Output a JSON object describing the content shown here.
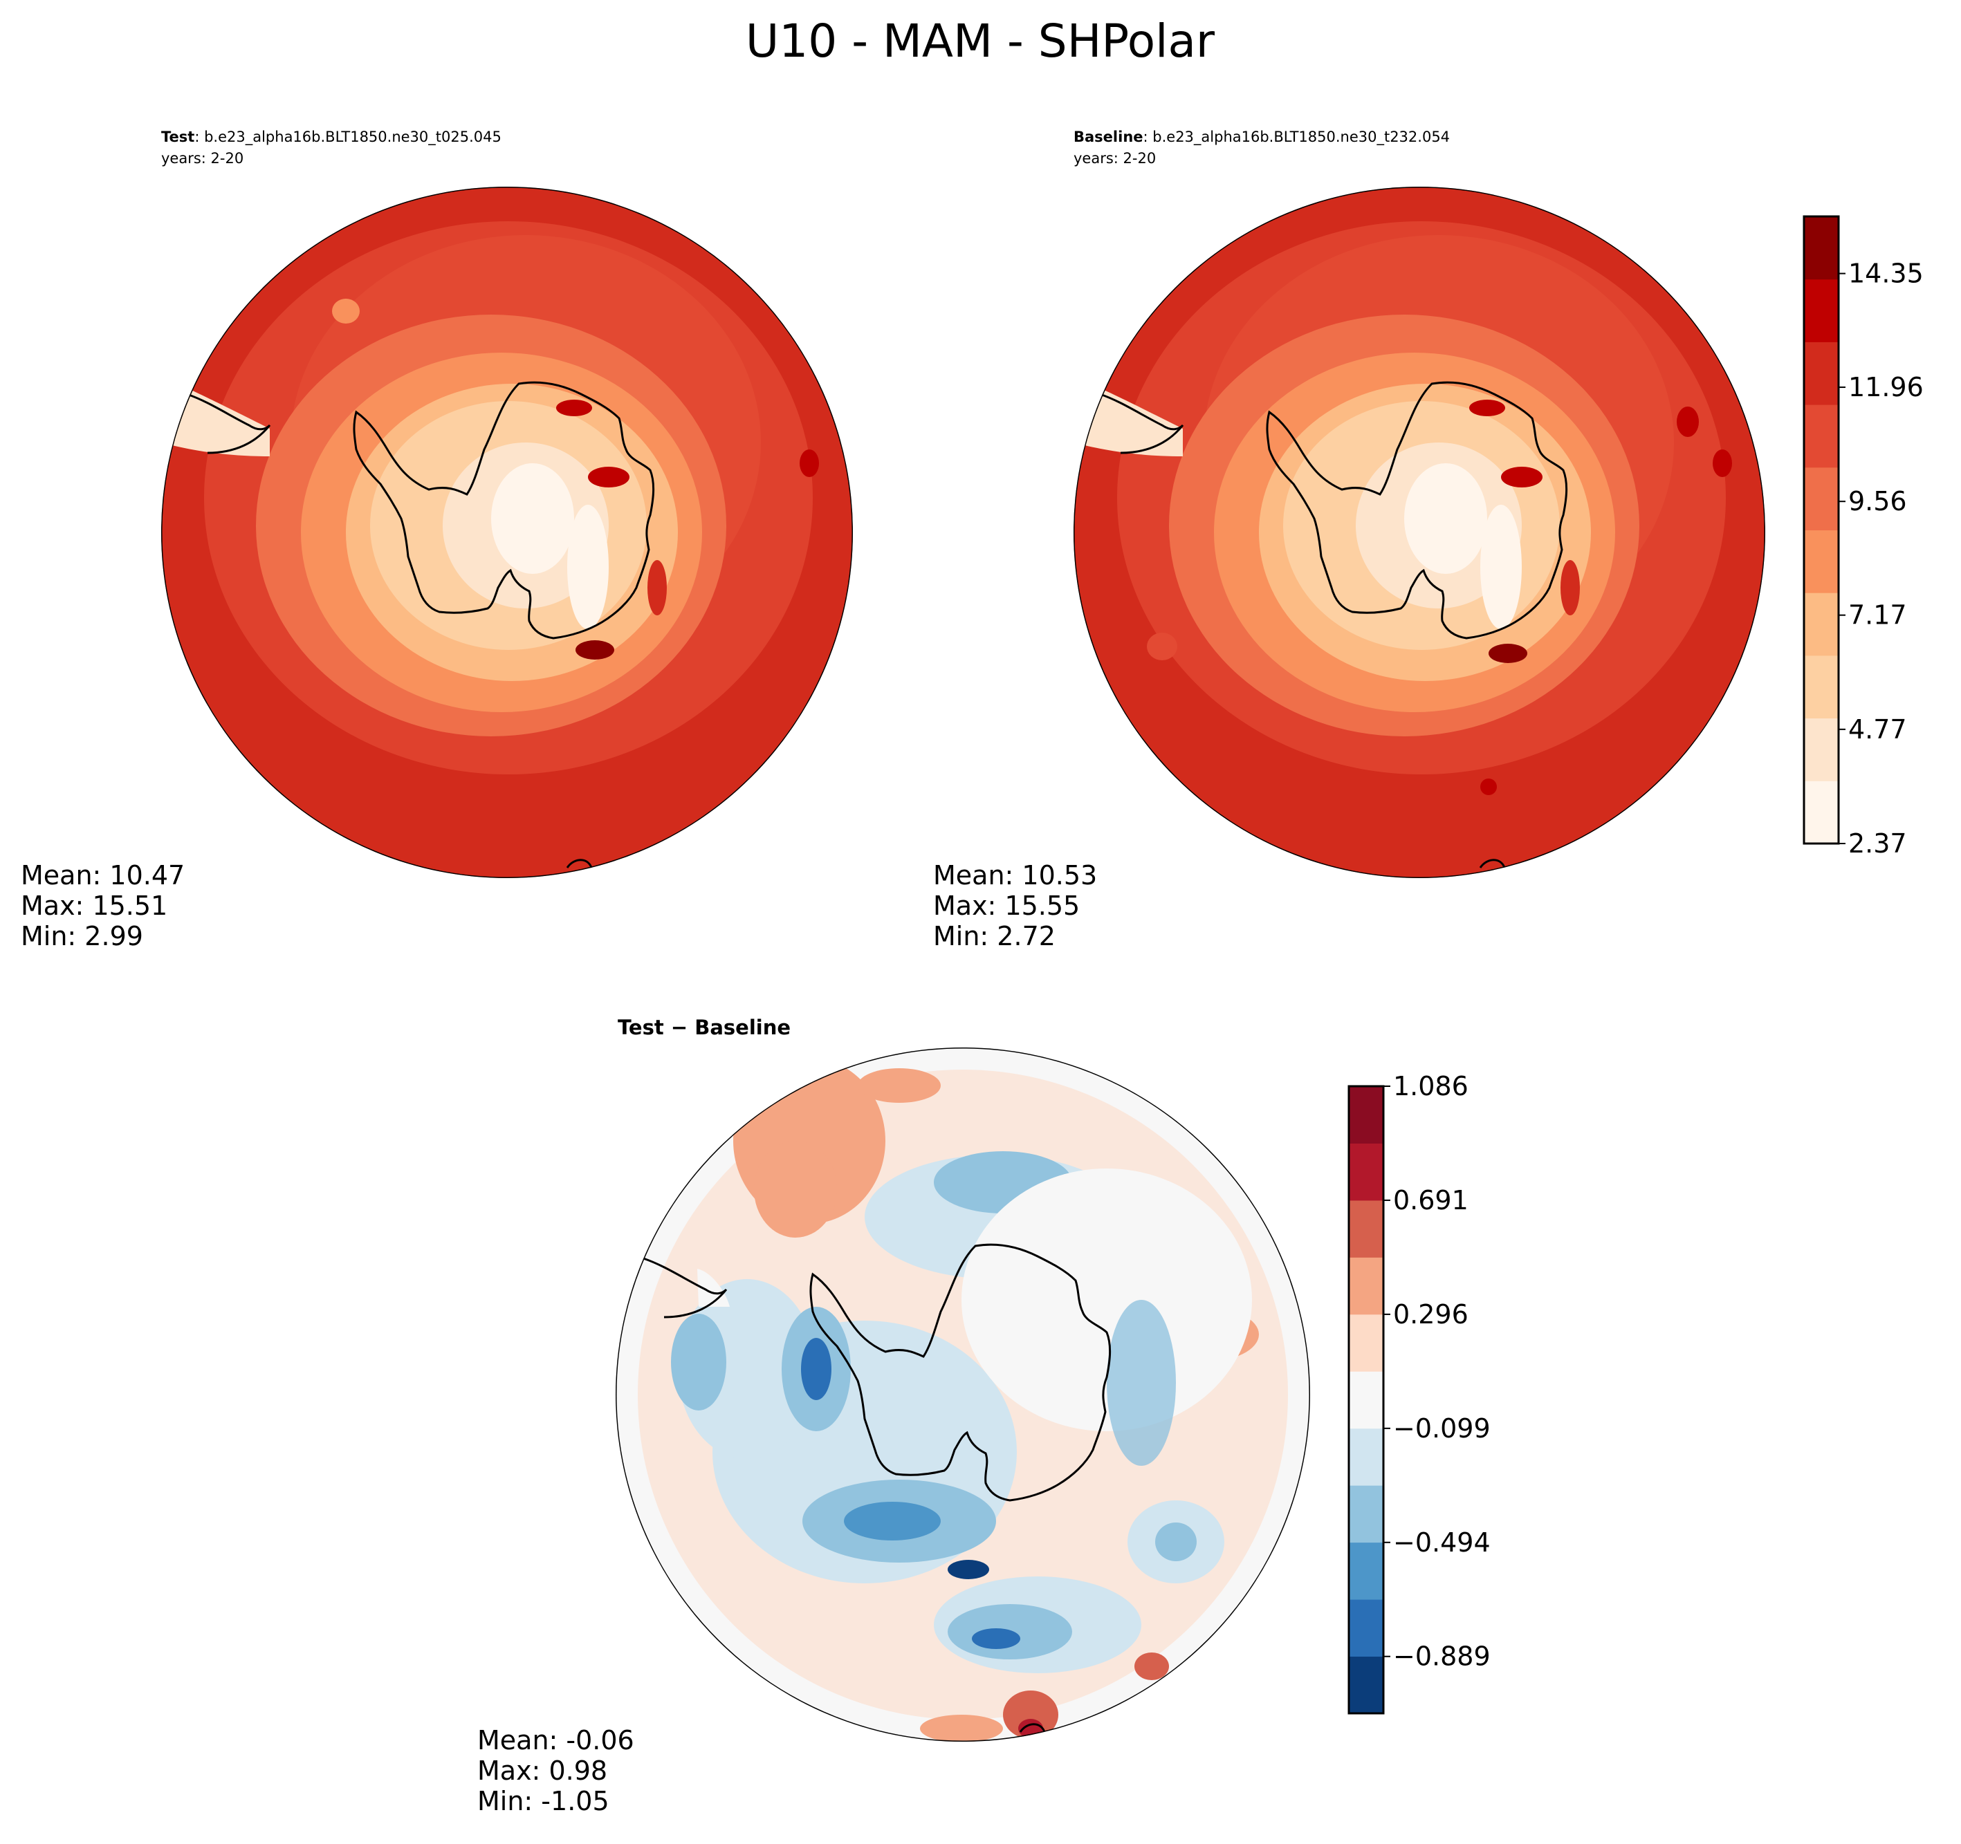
{
  "figure": {
    "title": "U10 - MAM - SHPolar"
  },
  "panels": [
    {
      "id": "test",
      "label": "Test",
      "case": ": b.e23_alpha16b.BLT1850.ne30_t025.045",
      "years": "years: 2-20",
      "stats": {
        "mean": "Mean: 10.47",
        "max": "Max: 15.51",
        "min": "Min:  2.99"
      }
    },
    {
      "id": "baseline",
      "label": "Baseline",
      "case": ": b.e23_alpha16b.BLT1850.ne30_t232.054",
      "years": "years: 2-20",
      "stats": {
        "mean": "Mean: 10.53",
        "max": "Max: 15.55",
        "min": "Min:  2.72"
      }
    },
    {
      "id": "diff",
      "label": "Test − Baseline",
      "stats": {
        "mean": "Mean: -0.06",
        "max": "Max:  0.98",
        "min": "Min: -1.05"
      }
    }
  ],
  "colors": {
    "field_levels": [
      "#fff5eb",
      "#fde4cc",
      "#fdd0a2",
      "#fcbb84",
      "#f9915c",
      "#ef6f4a",
      "#e34a33",
      "#d22b1c",
      "#bf0000",
      "#8b0000"
    ],
    "diff_levels": [
      "#0b3d7a",
      "#2a6fb6",
      "#4d96c9",
      "#92c3de",
      "#d1e5f0",
      "#f7f7f7",
      "#fddbc7",
      "#f4a582",
      "#d6604d",
      "#b2182b",
      "#8a0c22"
    ]
  },
  "chart_data": [
    {
      "type": "heatmap",
      "projection": "south-polar-stereographic",
      "variable": "U10",
      "panel": "Test",
      "mean": 10.47,
      "max": 15.51,
      "min": 2.99,
      "colorbar_levels": [
        2.37,
        3.56,
        4.77,
        5.96,
        7.17,
        8.36,
        9.56,
        10.76,
        11.96,
        13.16,
        14.35,
        15.55
      ]
    },
    {
      "type": "heatmap",
      "projection": "south-polar-stereographic",
      "variable": "U10",
      "panel": "Baseline",
      "mean": 10.53,
      "max": 15.55,
      "min": 2.72,
      "colorbar": {
        "ticks": [
          "2.37",
          "4.77",
          "7.17",
          "9.56",
          "11.96",
          "14.35"
        ],
        "range": [
          2.37,
          15.55
        ]
      }
    },
    {
      "type": "heatmap",
      "projection": "south-polar-stereographic",
      "variable": "U10",
      "panel": "Test − Baseline",
      "mean": -0.06,
      "max": 0.98,
      "min": -1.05,
      "colorbar": {
        "ticks": [
          "−0.889",
          "−0.494",
          "−0.099",
          "0.296",
          "0.691",
          "1.086"
        ],
        "range": [
          -1.086,
          1.086
        ]
      }
    }
  ]
}
